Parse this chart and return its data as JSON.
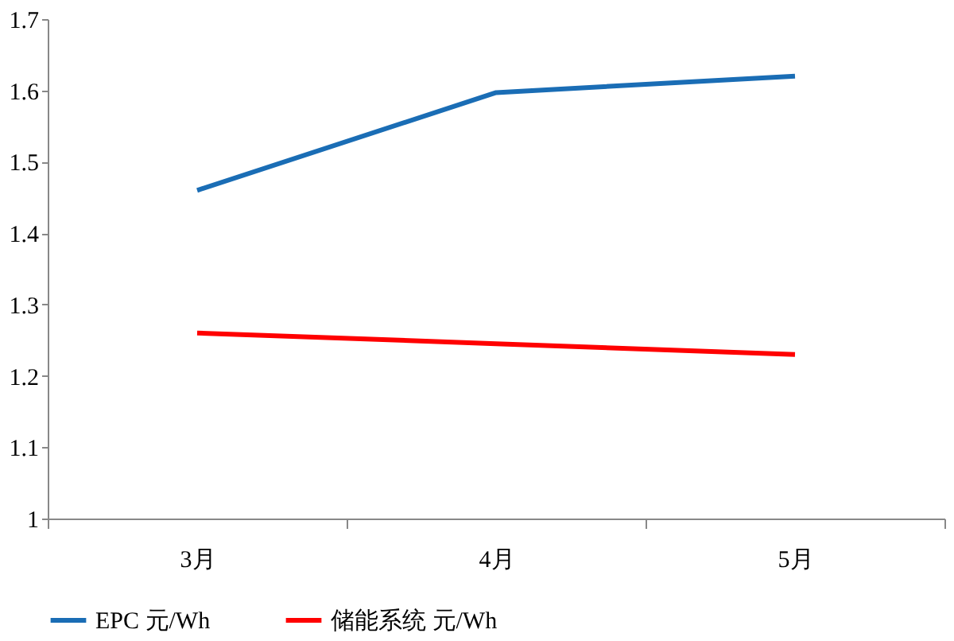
{
  "chart_data": {
    "type": "line",
    "categories": [
      "3月",
      "4月",
      "5月"
    ],
    "series": [
      {
        "name": "EPC 元/Wh",
        "color": "#1a6db5",
        "values": [
          1.46,
          1.597,
          1.62
        ]
      },
      {
        "name": "储能系统 元/Wh",
        "color": "#ff0000",
        "values": [
          1.26,
          1.245,
          1.23
        ]
      }
    ],
    "ylim": [
      1,
      1.7
    ],
    "yticks": [
      1,
      1.1,
      1.2,
      1.3,
      1.4,
      1.5,
      1.6,
      1.7
    ],
    "grid": false,
    "legend": "bottom",
    "marker": "none",
    "line_style": "solid"
  }
}
